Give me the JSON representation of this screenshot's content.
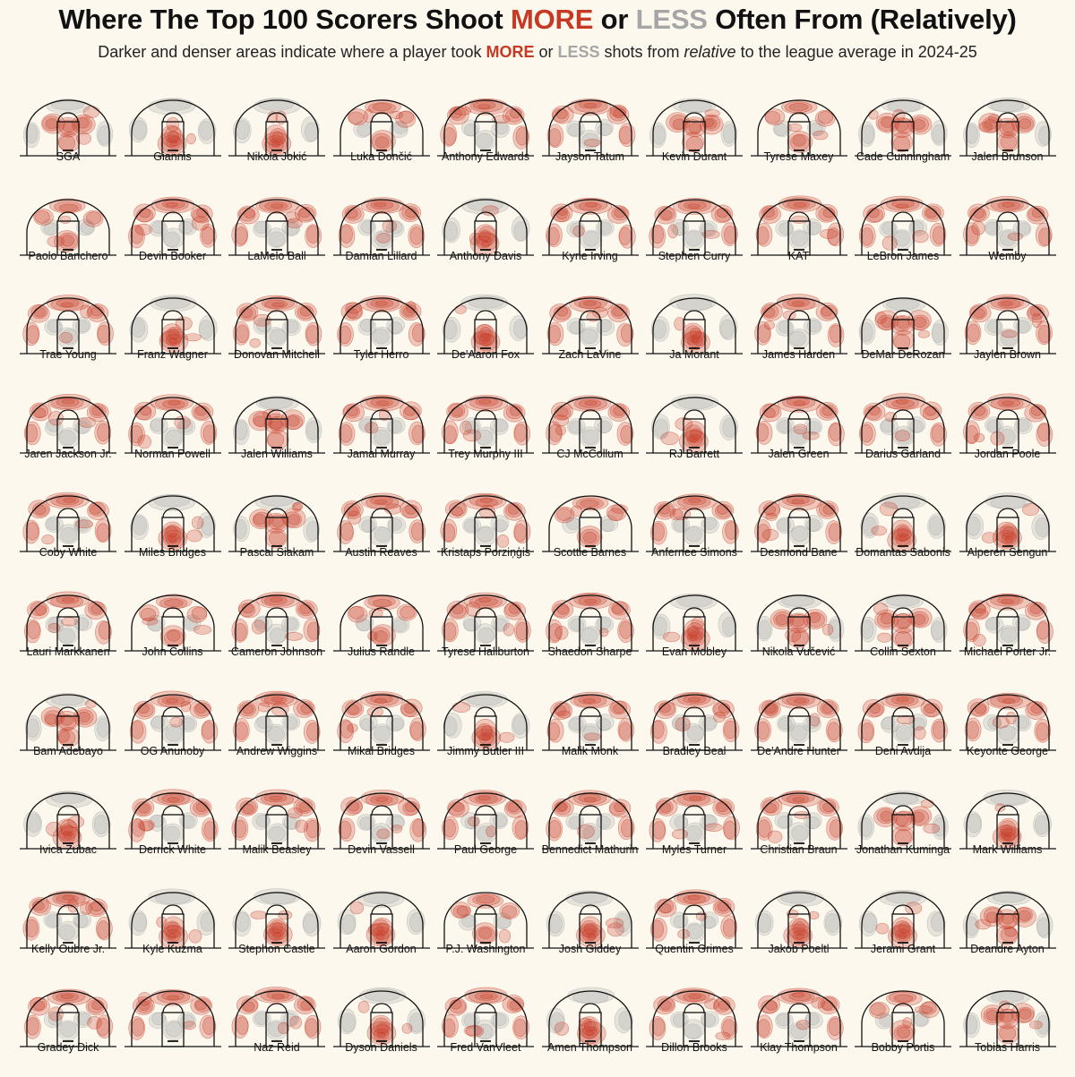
{
  "title": {
    "pre": "Where The Top 100 Scorers Shoot ",
    "more": "MORE",
    "mid": " or ",
    "less": "LESS",
    "post": " Often From (Relatively)"
  },
  "subtitle": {
    "pre": "Darker and denser areas indicate where a player took ",
    "more": "MORE",
    "mid": " or ",
    "less": "LESS",
    "mid2": " shots from ",
    "rel": "relative",
    "post": " to the league average in 2024-25"
  },
  "colors": {
    "more": "#c63a25",
    "less": "#a6a6a6",
    "background": "#fcf8ee",
    "court_lines": "#111111"
  },
  "chart_data": {
    "type": "heatmap",
    "rows": 10,
    "cols": 10,
    "players": [
      "SGA",
      "Giannis",
      "Nikola Jokić",
      "Luka Dončić",
      "Anthony Edwards",
      "Jayson Tatum",
      "Kevin Durant",
      "Tyrese Maxey",
      "Cade Cunningham",
      "Jalen Brunson",
      "Paolo Banchero",
      "Devin Booker",
      "LaMelo Ball",
      "Damian Lillard",
      "Anthony Davis",
      "Kyrie Irving",
      "Stephen Curry",
      "KAT",
      "LeBron James",
      "Wemby",
      "Trae Young",
      "Franz Wagner",
      "Donovan Mitchell",
      "Tyler Herro",
      "De'Aaron Fox",
      "Zach LaVine",
      "Ja Morant",
      "James Harden",
      "DeMar DeRozan",
      "Jaylen Brown",
      "Jaren Jackson Jr.",
      "Norman Powell",
      "Jalen Williams",
      "Jamal Murray",
      "Trey Murphy III",
      "CJ McCollum",
      "RJ Barrett",
      "Jalen Green",
      "Darius Garland",
      "Jordan Poole",
      "Coby White",
      "Miles Bridges",
      "Pascal Siakam",
      "Austin Reaves",
      "Kristaps Porziņģis",
      "Scottie Barnes",
      "Anfernee Simons",
      "Desmond Bane",
      "Domantas Sabonis",
      "Alperen Sengun",
      "Lauri Markkanen",
      "John Collins",
      "Cameron Johnson",
      "Julius Randle",
      "Tyrese Haliburton",
      "Shaedon Sharpe",
      "Evan Mobley",
      "Nikola Vučević",
      "Collin Sexton",
      "Michael Porter Jr.",
      "Bam Adebayo",
      "OG Anunoby",
      "Andrew Wiggins",
      "Mikal Bridges",
      "Jimmy Butler III",
      "Malik Monk",
      "Bradley Beal",
      "De'Andre Hunter",
      "Deni Avdija",
      "Keyonte George",
      "Ivica Zubac",
      "Derrick White",
      "Malik Beasley",
      "Devin Vassell",
      "Paul George",
      "Bennedict Mathurin",
      "Myles Turner",
      "Christian Braun",
      "Jonathan Kuminga",
      "Mark Williams",
      "Kelly Oubre Jr.",
      "Kyle Kuzma",
      "Stephon Castle",
      "Aaron Gordon",
      "P.J. Washington",
      "Josh Giddey",
      "Quentin Grimes",
      "Jakob Poeltl",
      "Jerami Grant",
      "Deandre Ayton",
      "Gradey Dick",
      "",
      "Naz Reid",
      "Dyson Daniels",
      "Fred VanVleet",
      "Amen Thompson",
      "Dillon Brooks",
      "Klay Thompson",
      "Bobby Portis",
      "Tobias Harris"
    ],
    "profiles": [
      "mid",
      "rim",
      "rim",
      "mix",
      "three",
      "three",
      "mid",
      "mix",
      "mid",
      "mid",
      "mix",
      "three",
      "three",
      "three",
      "rim",
      "three",
      "three",
      "three",
      "three",
      "three",
      "three",
      "rim",
      "three",
      "three",
      "rim",
      "three",
      "rim",
      "three",
      "mid",
      "three",
      "three",
      "three",
      "mid",
      "three",
      "three",
      "three",
      "rim",
      "three",
      "three",
      "three",
      "three",
      "rim",
      "mid",
      "three",
      "three",
      "mix",
      "three",
      "three",
      "rim",
      "rim",
      "three",
      "mix",
      "three",
      "mix",
      "three",
      "three",
      "rim",
      "mid",
      "mid",
      "three",
      "mid",
      "three",
      "three",
      "three",
      "rim",
      "three",
      "three",
      "three",
      "three",
      "three",
      "rim",
      "three",
      "three",
      "three",
      "three",
      "three",
      "three",
      "three",
      "mid",
      "rim",
      "three",
      "rim",
      "rim",
      "rim",
      "mix",
      "rim",
      "three",
      "rim",
      "rim",
      "mid",
      "three",
      "three",
      "three",
      "rim",
      "three",
      "rim",
      "three",
      "three",
      "mix",
      "mid"
    ]
  }
}
